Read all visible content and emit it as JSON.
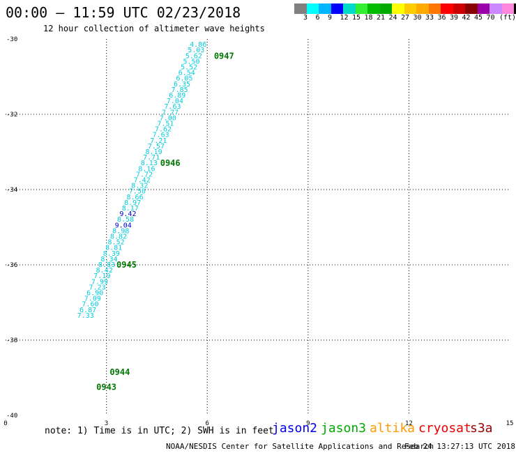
{
  "header": {
    "title": "00:00 – 11:59 UTC 02/23/2018",
    "subtitle": "12 hour collection of altimeter wave heights"
  },
  "legend": {
    "colors": [
      "#808080",
      "#00ffff",
      "#00b4ff",
      "#0000ff",
      "#00d8c8",
      "#33ee33",
      "#00bb00",
      "#00aa00",
      "#ffff00",
      "#ffcc00",
      "#ffaa00",
      "#ff7700",
      "#ff0000",
      "#cc0000",
      "#880000",
      "#9900aa",
      "#cc88ff",
      "#ff88dd",
      "#000000"
    ],
    "labels": [
      "3",
      "6",
      "9",
      "12",
      "15",
      "18",
      "21",
      "24",
      "27",
      "30",
      "33",
      "36",
      "39",
      "42",
      "45",
      "70"
    ],
    "unit": "(ft)"
  },
  "chart_data": {
    "type": "scatter",
    "x_ticks": [
      "0",
      "3",
      "6",
      "9",
      "12",
      "15"
    ],
    "y_ticks": [
      "-30",
      "-32",
      "-34",
      "-36",
      "-38",
      "-40"
    ],
    "xlim": [
      0,
      15
    ],
    "ylim": [
      -40,
      -30
    ],
    "grid": true,
    "points": [
      {
        "x": 5.98,
        "y": -30.15,
        "label": "4.86",
        "color": "#00ccdd"
      },
      {
        "x": 5.92,
        "y": -30.3,
        "label": "5.03",
        "color": "#00ccdd"
      },
      {
        "x": 5.85,
        "y": -30.45,
        "label": "5.62",
        "color": "#00ccdd"
      },
      {
        "x": 5.78,
        "y": -30.6,
        "label": "5.50",
        "color": "#00ccdd"
      },
      {
        "x": 5.71,
        "y": -30.75,
        "label": "5.52",
        "color": "#00ccdd"
      },
      {
        "x": 5.64,
        "y": -30.9,
        "label": "6.54",
        "color": "#00ccdd"
      },
      {
        "x": 5.57,
        "y": -31.05,
        "label": "6.05",
        "color": "#00ccdd"
      },
      {
        "x": 5.5,
        "y": -31.2,
        "label": "6.35",
        "color": "#00ccdd"
      },
      {
        "x": 5.43,
        "y": -31.35,
        "label": "7.85",
        "color": "#00ccdd"
      },
      {
        "x": 5.36,
        "y": -31.5,
        "label": "6.89",
        "color": "#00ccdd"
      },
      {
        "x": 5.29,
        "y": -31.65,
        "label": "7.04",
        "color": "#00ccdd"
      },
      {
        "x": 5.22,
        "y": -31.8,
        "label": "7.63",
        "color": "#00ccdd"
      },
      {
        "x": 5.15,
        "y": -31.95,
        "label": "7.77",
        "color": "#00ccdd"
      },
      {
        "x": 5.08,
        "y": -32.1,
        "label": "7.00",
        "color": "#00ccdd"
      },
      {
        "x": 5.01,
        "y": -32.25,
        "label": "7.51",
        "color": "#00ccdd"
      },
      {
        "x": 4.94,
        "y": -32.4,
        "label": "7.62",
        "color": "#00ccdd"
      },
      {
        "x": 4.87,
        "y": -32.55,
        "label": "7.63",
        "color": "#00ccdd"
      },
      {
        "x": 4.8,
        "y": -32.7,
        "label": "7.21",
        "color": "#00ccdd"
      },
      {
        "x": 4.73,
        "y": -32.85,
        "label": "7.57",
        "color": "#00ccdd"
      },
      {
        "x": 4.66,
        "y": -33.0,
        "label": "8.19",
        "color": "#00ccdd"
      },
      {
        "x": 4.59,
        "y": -33.15,
        "label": "7.71",
        "color": "#00ccdd"
      },
      {
        "x": 4.52,
        "y": -33.3,
        "label": "8.13",
        "color": "#00ccdd"
      },
      {
        "x": 4.45,
        "y": -33.45,
        "label": "8.16",
        "color": "#00ccdd"
      },
      {
        "x": 4.38,
        "y": -33.6,
        "label": "7.72",
        "color": "#00ccdd"
      },
      {
        "x": 4.31,
        "y": -33.75,
        "label": "7.42",
        "color": "#00ccdd"
      },
      {
        "x": 4.24,
        "y": -33.9,
        "label": "8.32",
        "color": "#00ccdd"
      },
      {
        "x": 4.17,
        "y": -34.05,
        "label": "7.50",
        "color": "#00ccdd"
      },
      {
        "x": 4.1,
        "y": -34.2,
        "label": "8.66",
        "color": "#00ccdd"
      },
      {
        "x": 4.03,
        "y": -34.35,
        "label": "8.97",
        "color": "#00ccdd"
      },
      {
        "x": 3.96,
        "y": -34.5,
        "label": "8.17",
        "color": "#00ccdd"
      },
      {
        "x": 3.89,
        "y": -34.65,
        "label": "9.42",
        "color": "#0000cc"
      },
      {
        "x": 3.82,
        "y": -34.8,
        "label": "8.58",
        "color": "#00ccdd"
      },
      {
        "x": 3.75,
        "y": -34.95,
        "label": "9.04",
        "color": "#0000cc"
      },
      {
        "x": 3.68,
        "y": -35.1,
        "label": "8.98",
        "color": "#00ccdd"
      },
      {
        "x": 3.61,
        "y": -35.25,
        "label": "8.82",
        "color": "#00ccdd"
      },
      {
        "x": 3.54,
        "y": -35.4,
        "label": "8.52",
        "color": "#00ccdd"
      },
      {
        "x": 3.47,
        "y": -35.55,
        "label": "8.81",
        "color": "#00ccdd"
      },
      {
        "x": 3.4,
        "y": -35.7,
        "label": "8.39",
        "color": "#00ccdd"
      },
      {
        "x": 3.33,
        "y": -35.85,
        "label": "8.34",
        "color": "#00ccdd"
      },
      {
        "x": 3.26,
        "y": -36.0,
        "label": "8.83",
        "color": "#00ccdd"
      },
      {
        "x": 3.19,
        "y": -36.15,
        "label": "8.42",
        "color": "#00ccdd"
      },
      {
        "x": 3.12,
        "y": -36.3,
        "label": "7.19",
        "color": "#00ccdd"
      },
      {
        "x": 3.05,
        "y": -36.45,
        "label": "7.99",
        "color": "#00ccdd"
      },
      {
        "x": 2.98,
        "y": -36.6,
        "label": "7.23",
        "color": "#00ccdd"
      },
      {
        "x": 2.91,
        "y": -36.75,
        "label": "6.90",
        "color": "#00ccdd"
      },
      {
        "x": 2.84,
        "y": -36.9,
        "label": "7.09",
        "color": "#00ccdd"
      },
      {
        "x": 2.77,
        "y": -37.05,
        "label": "7.60",
        "color": "#00ccdd"
      },
      {
        "x": 2.7,
        "y": -37.2,
        "label": "6.87",
        "color": "#00ccdd"
      },
      {
        "x": 2.63,
        "y": -37.35,
        "label": "7.33",
        "color": "#00ccdd"
      }
    ],
    "annotations": [
      {
        "text": "0947",
        "x": 6.2,
        "y": -30.45,
        "color": "#007700"
      },
      {
        "text": "0946",
        "x": 4.6,
        "y": -33.3,
        "color": "#007700"
      },
      {
        "text": "0945",
        "x": 3.3,
        "y": -36.0,
        "color": "#007700"
      },
      {
        "text": "0944",
        "x": 3.1,
        "y": -38.85,
        "color": "#007700"
      },
      {
        "text": "0943",
        "x": 2.7,
        "y": -39.25,
        "color": "#007700"
      }
    ]
  },
  "note": "note: 1) Time is in UTC; 2) SWH is in feet",
  "satellites": [
    {
      "name": "jason2",
      "color": "#0000ee"
    },
    {
      "name": "jason3",
      "color": "#00aa00"
    },
    {
      "name": "altika",
      "color": "#ff9900"
    },
    {
      "name": "cryosat",
      "color": "#ee0000"
    },
    {
      "name": "s3a",
      "color": "#990000"
    }
  ],
  "footer": {
    "left": "NOAA/NESDIS Center for Satellite Applications and Research",
    "right": "Feb 24 13:27:13 UTC 2018"
  }
}
